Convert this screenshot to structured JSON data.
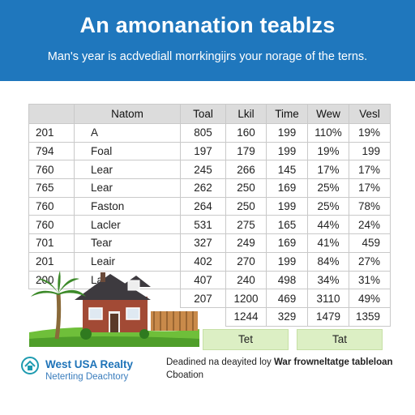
{
  "header": {
    "title": "An amonanation teablzs",
    "subtitle": "Man's year is acdvediall morrkingijrs your norage of the terns."
  },
  "table": {
    "columns": [
      "",
      "Natom",
      "Toal",
      "Lkil",
      "Time",
      "Wew",
      "Vesl"
    ],
    "rows": [
      [
        "201",
        "A",
        "805",
        "160",
        "199",
        "110%",
        "19%"
      ],
      [
        "794",
        "Foal",
        "197",
        "179",
        "199",
        "19%",
        "199"
      ],
      [
        "760",
        "Lear",
        "245",
        "266",
        "145",
        "17%",
        "17%"
      ],
      [
        "765",
        "Lear",
        "262",
        "250",
        "169",
        "25%",
        "17%"
      ],
      [
        "760",
        "Faston",
        "264",
        "250",
        "199",
        "25%",
        "78%"
      ],
      [
        "760",
        "Lacler",
        "531",
        "275",
        "165",
        "44%",
        "24%"
      ],
      [
        "701",
        "Tear",
        "327",
        "249",
        "169",
        "41%",
        "459"
      ],
      [
        "201",
        "Leair",
        "402",
        "270",
        "199",
        "84%",
        "27%"
      ],
      [
        "200",
        "Laat",
        "407",
        "240",
        "498",
        "34%",
        "31%"
      ],
      [
        "",
        "",
        "207",
        "1200",
        "469",
        "3110",
        "49%"
      ],
      [
        "",
        "",
        "",
        "1244",
        "329",
        "1479",
        "1359"
      ]
    ]
  },
  "totals": {
    "left_label": "Tet",
    "right_label": "Tat"
  },
  "footer": {
    "brand": "West USA Realty",
    "brand_sub": "Neterting Deachtory",
    "note_prefix": "Deadined na deayited loy",
    "note_bold": "War frowneltatge tableloan",
    "credit": "Cboation",
    "logo_icon": "globe-house-icon"
  },
  "colors": {
    "banner": "#1f77bd",
    "header_row": "#dcdcdc",
    "total_cell": "#dcefc4"
  }
}
